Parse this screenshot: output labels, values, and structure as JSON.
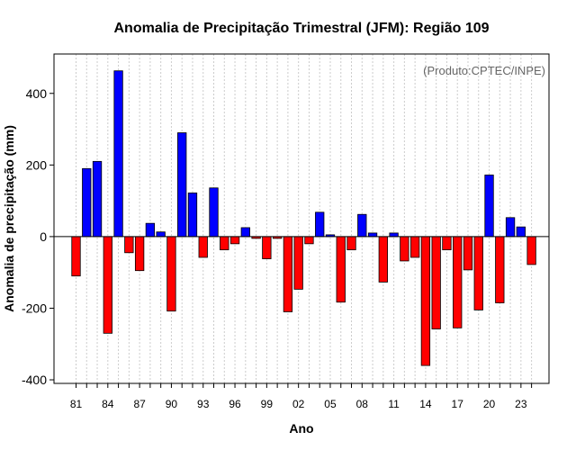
{
  "chart_data": {
    "type": "bar",
    "title": "Anomalia de Precipitação Trimestral (JFM): Região 109",
    "subtitle": "(Produto:CPTEC/INPE)",
    "xlabel": "Ano",
    "ylabel": "Anomalia de precipitação (mm)",
    "ylim": [
      -410,
      510
    ],
    "yticks": [
      -400,
      -200,
      0,
      200,
      400
    ],
    "grid": true,
    "positive_color": "#0000ff",
    "negative_color": "#ff0000",
    "tick_labels": [
      "81",
      "84",
      "87",
      "90",
      "93",
      "96",
      "99",
      "02",
      "05",
      "08",
      "11",
      "14",
      "17",
      "20",
      "23"
    ],
    "categories": [
      "1981",
      "1982",
      "1983",
      "1984",
      "1985",
      "1986",
      "1987",
      "1988",
      "1989",
      "1990",
      "1991",
      "1992",
      "1993",
      "1994",
      "1995",
      "1996",
      "1997",
      "1998",
      "1999",
      "2000",
      "2001",
      "2002",
      "2003",
      "2004",
      "2005",
      "2006",
      "2007",
      "2008",
      "2009",
      "2010",
      "2011",
      "2012",
      "2013",
      "2014",
      "2015",
      "2016",
      "2017",
      "2018",
      "2019",
      "2020",
      "2021",
      "2022",
      "2023",
      "2024"
    ],
    "values": [
      -110,
      190,
      210,
      -270,
      463,
      -45,
      -95,
      37,
      13,
      -208,
      290,
      122,
      -58,
      136,
      -37,
      -20,
      25,
      -5,
      -62,
      -5,
      -210,
      -147,
      -20,
      68,
      5,
      -183,
      -37,
      62,
      10,
      -127,
      10,
      -68,
      -58,
      -360,
      -258,
      -37,
      -255,
      -93,
      -205,
      172,
      -185,
      53,
      27,
      -78
    ]
  }
}
